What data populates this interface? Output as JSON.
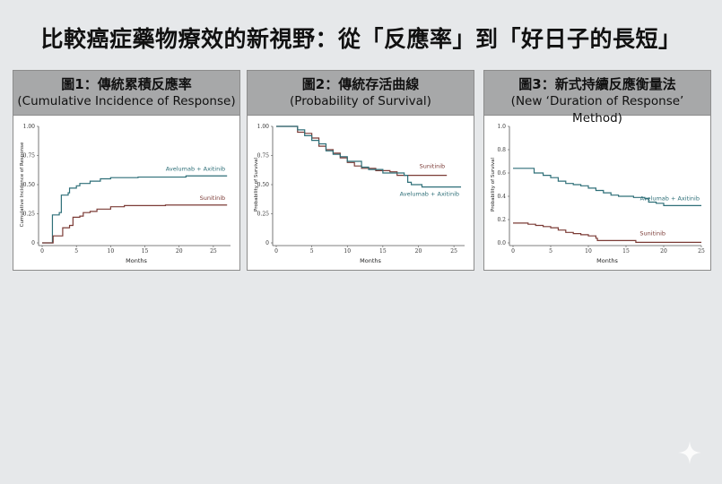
{
  "title": "比較癌症藥物療效的新視野：從「反應率」到「好日子的長短」",
  "colors": {
    "avelumab": "#2e6f78",
    "sunitinib": "#7b3b36",
    "header_bg": "#a7a8a9",
    "background": "#e6e8ea"
  },
  "panels": [
    {
      "heading_zh": "圖1：傳統累積反應率",
      "heading_en": "(Cumulative Incidence of Response)"
    },
    {
      "heading_zh": "圖2：傳統存活曲線",
      "heading_en": "(Probability of Survival)"
    },
    {
      "heading_zh": "圖3：新式持續反應衡量法",
      "heading_en": "(New ‘Duration of Response’ Method)"
    }
  ],
  "chart_data": [
    {
      "type": "line",
      "step": true,
      "xlabel": "Months",
      "ylabel": "Cumulative Incidence of Response",
      "xlim": [
        0,
        27.5
      ],
      "ylim": [
        0,
        1
      ],
      "xticks": [
        "0",
        "5",
        "10",
        "15",
        "20",
        "25"
      ],
      "yticks": [
        "0",
        "0.25",
        "0.50",
        "0.75",
        "1.00"
      ],
      "series": [
        {
          "name": "Avelumab + Axitinib",
          "color": "#2e6f78",
          "x": [
            0,
            1.3,
            1.5,
            2.5,
            2.8,
            3.8,
            4,
            5,
            5.5,
            7,
            8.5,
            10,
            14,
            21,
            27
          ],
          "y": [
            0,
            0,
            0.24,
            0.26,
            0.41,
            0.43,
            0.47,
            0.49,
            0.51,
            0.53,
            0.55,
            0.56,
            0.565,
            0.575,
            0.575
          ]
        },
        {
          "name": "Sunitinib",
          "color": "#7b3b36",
          "x": [
            0,
            1.5,
            1.6,
            2.8,
            3,
            4,
            4.5,
            5.5,
            6,
            7,
            8,
            10,
            12,
            18,
            27
          ],
          "y": [
            0,
            0,
            0.06,
            0.06,
            0.13,
            0.15,
            0.22,
            0.23,
            0.26,
            0.27,
            0.29,
            0.31,
            0.32,
            0.325,
            0.325
          ]
        }
      ]
    },
    {
      "type": "line",
      "step": true,
      "xlabel": "Months",
      "ylabel": "Probability of Survival",
      "xlim": [
        0,
        26.5
      ],
      "ylim": [
        0,
        1
      ],
      "xticks": [
        "0",
        "5",
        "10",
        "15",
        "20",
        "25"
      ],
      "yticks": [
        "0",
        "0.25",
        "0.50",
        "0.75",
        "1.00"
      ],
      "series": [
        {
          "name": "Sunitinib",
          "color": "#7b3b36",
          "x": [
            0,
            2.5,
            3,
            4,
            5,
            6,
            7,
            8,
            9,
            10,
            11,
            12,
            14,
            16,
            17,
            24
          ],
          "y": [
            1,
            1,
            0.95,
            0.94,
            0.9,
            0.83,
            0.8,
            0.77,
            0.73,
            0.69,
            0.66,
            0.64,
            0.62,
            0.61,
            0.58,
            0.58
          ]
        },
        {
          "name": "Avelumab + Axitinib",
          "color": "#2e6f78",
          "x": [
            0,
            2,
            3,
            4,
            5,
            6,
            7,
            8,
            9,
            10,
            12,
            13,
            15,
            18,
            18.5,
            19,
            20.5,
            26
          ],
          "y": [
            1,
            1,
            0.97,
            0.92,
            0.88,
            0.85,
            0.79,
            0.76,
            0.74,
            0.7,
            0.65,
            0.63,
            0.6,
            0.58,
            0.52,
            0.5,
            0.48,
            0.48
          ]
        }
      ]
    },
    {
      "type": "line",
      "step": true,
      "xlabel": "Months",
      "ylabel": "Probability of Survival",
      "xlim": [
        0,
        25
      ],
      "ylim": [
        0,
        1
      ],
      "xticks": [
        "0",
        "5",
        "10",
        "15",
        "20",
        "25"
      ],
      "yticks": [
        "0.0",
        "0.2",
        "0.4",
        "0.6",
        "0.8",
        "1.0"
      ],
      "series": [
        {
          "name": "Avelumab + Axitinib",
          "color": "#2e6f78",
          "x": [
            0,
            2.8,
            4,
            5,
            6,
            7,
            8,
            9,
            10,
            11,
            12,
            13,
            14,
            16,
            17.5,
            18,
            19,
            20,
            25
          ],
          "y": [
            0.64,
            0.6,
            0.58,
            0.56,
            0.53,
            0.51,
            0.5,
            0.49,
            0.47,
            0.45,
            0.43,
            0.41,
            0.4,
            0.39,
            0.38,
            0.35,
            0.34,
            0.32,
            0.32
          ]
        },
        {
          "name": "Sunitinib",
          "color": "#7b3b36",
          "x": [
            0,
            2,
            3,
            4,
            5,
            6,
            7,
            8,
            9,
            10,
            11,
            11.2,
            14,
            16.3,
            25
          ],
          "y": [
            0.17,
            0.16,
            0.15,
            0.14,
            0.13,
            0.11,
            0.09,
            0.08,
            0.07,
            0.06,
            0.04,
            0.02,
            0.02,
            0.005,
            0.005
          ]
        }
      ]
    }
  ]
}
